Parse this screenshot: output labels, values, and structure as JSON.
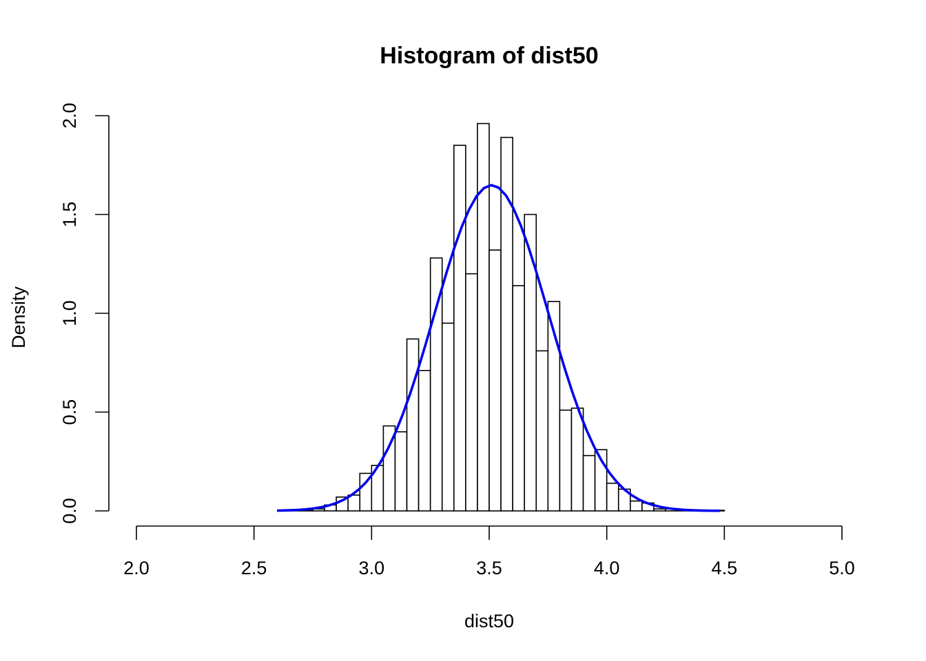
{
  "chart_data": {
    "type": "bar",
    "title": "Histogram of dist50",
    "xlabel": "dist50",
    "ylabel": "Density",
    "xlim": [
      2.0,
      5.0
    ],
    "ylim": [
      0.0,
      2.0
    ],
    "x_ticks": [
      2.0,
      2.5,
      3.0,
      3.5,
      4.0,
      4.5,
      5.0
    ],
    "x_tick_labels": [
      "2.0",
      "2.5",
      "3.0",
      "3.5",
      "4.0",
      "4.5",
      "5.0"
    ],
    "y_ticks": [
      0.0,
      0.5,
      1.0,
      1.5,
      2.0
    ],
    "y_tick_labels": [
      "0.0",
      "0.5",
      "1.0",
      "1.5",
      "2.0"
    ],
    "grid": false,
    "bin_width": 0.05,
    "bins": [
      {
        "x0": 2.6,
        "x1": 2.65,
        "density": 0.003
      },
      {
        "x0": 2.65,
        "x1": 2.7,
        "density": 0.003
      },
      {
        "x0": 2.7,
        "x1": 2.75,
        "density": 0.003
      },
      {
        "x0": 2.75,
        "x1": 2.8,
        "density": 0.01
      },
      {
        "x0": 2.8,
        "x1": 2.85,
        "density": 0.03
      },
      {
        "x0": 2.85,
        "x1": 2.9,
        "density": 0.07
      },
      {
        "x0": 2.9,
        "x1": 2.95,
        "density": 0.08
      },
      {
        "x0": 2.95,
        "x1": 3.0,
        "density": 0.19
      },
      {
        "x0": 3.0,
        "x1": 3.05,
        "density": 0.23
      },
      {
        "x0": 3.05,
        "x1": 3.1,
        "density": 0.43
      },
      {
        "x0": 3.1,
        "x1": 3.15,
        "density": 0.4
      },
      {
        "x0": 3.15,
        "x1": 3.2,
        "density": 0.87
      },
      {
        "x0": 3.2,
        "x1": 3.25,
        "density": 0.71
      },
      {
        "x0": 3.25,
        "x1": 3.3,
        "density": 1.28
      },
      {
        "x0": 3.3,
        "x1": 3.35,
        "density": 0.95
      },
      {
        "x0": 3.35,
        "x1": 3.4,
        "density": 1.85
      },
      {
        "x0": 3.4,
        "x1": 3.45,
        "density": 1.2
      },
      {
        "x0": 3.45,
        "x1": 3.5,
        "density": 1.96
      },
      {
        "x0": 3.5,
        "x1": 3.55,
        "density": 1.32
      },
      {
        "x0": 3.55,
        "x1": 3.6,
        "density": 1.89
      },
      {
        "x0": 3.6,
        "x1": 3.65,
        "density": 1.14
      },
      {
        "x0": 3.65,
        "x1": 3.7,
        "density": 1.5
      },
      {
        "x0": 3.7,
        "x1": 3.75,
        "density": 0.81
      },
      {
        "x0": 3.75,
        "x1": 3.8,
        "density": 1.06
      },
      {
        "x0": 3.8,
        "x1": 3.85,
        "density": 0.51
      },
      {
        "x0": 3.85,
        "x1": 3.9,
        "density": 0.52
      },
      {
        "x0": 3.9,
        "x1": 3.95,
        "density": 0.28
      },
      {
        "x0": 3.95,
        "x1": 4.0,
        "density": 0.31
      },
      {
        "x0": 4.0,
        "x1": 4.05,
        "density": 0.14
      },
      {
        "x0": 4.05,
        "x1": 4.1,
        "density": 0.11
      },
      {
        "x0": 4.1,
        "x1": 4.15,
        "density": 0.05
      },
      {
        "x0": 4.15,
        "x1": 4.2,
        "density": 0.04
      },
      {
        "x0": 4.2,
        "x1": 4.25,
        "density": 0.01
      },
      {
        "x0": 4.25,
        "x1": 4.3,
        "density": 0.01
      },
      {
        "x0": 4.3,
        "x1": 4.35,
        "density": 0.003
      },
      {
        "x0": 4.35,
        "x1": 4.4,
        "density": 0.003
      },
      {
        "x0": 4.4,
        "x1": 4.45,
        "density": 0.003
      },
      {
        "x0": 4.45,
        "x1": 4.5,
        "density": 0.003
      }
    ],
    "curve": {
      "type": "normal-density",
      "color": "#0000ee",
      "mean": 3.51,
      "sd": 0.242,
      "x_range": [
        2.6,
        4.48
      ]
    },
    "bar_fill": "#ffffff",
    "bar_stroke": "#000000"
  }
}
